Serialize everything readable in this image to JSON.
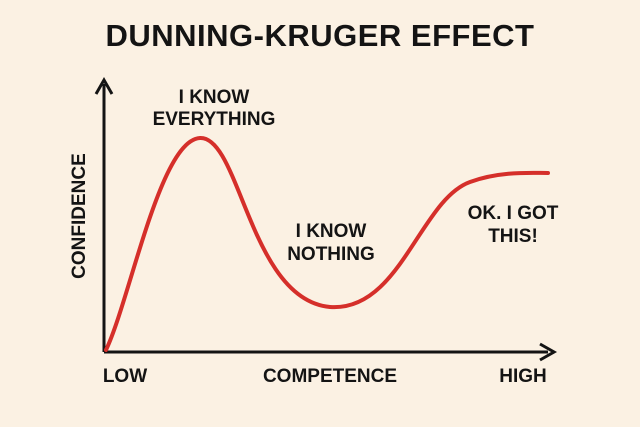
{
  "header": {
    "title": "DUNNING-KRUGER EFFECT"
  },
  "axes": {
    "y_label": "CONFIDENCE",
    "x_label": "COMPETENCE",
    "x_low": "LOW",
    "x_high": "HIGH"
  },
  "annotations": [
    {
      "lines": [
        "I KNOW",
        "EVERYTHING"
      ]
    },
    {
      "lines": [
        "I KNOW",
        "NOTHING"
      ]
    },
    {
      "lines": [
        "OK. I GOT",
        "THIS!"
      ]
    }
  ]
}
